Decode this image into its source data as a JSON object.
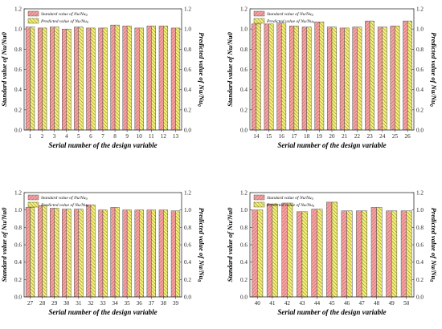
{
  "legend": {
    "standard_label": "Standard value of Nu/Nu",
    "standard_sub": "0",
    "predicted_label": "Predicted value of Nu/Nu",
    "predicted_sub": "0"
  },
  "colors": {
    "standard_fill": "#f2a3a3",
    "standard_hatch": "#c94f4f",
    "predicted_fill": "#f5f07a",
    "predicted_hatch": "#6f6f1a",
    "axis": "#333333"
  },
  "chart_data": [
    {
      "type": "bar",
      "position": "top-left",
      "title": "",
      "xlabel": "Serial number of the design variable",
      "ylabel": "Standard value of Nu/Nu0",
      "ylabel_right": "Predicted value of Nu/Nu",
      "ylabel_right_sub": "0",
      "ylim": [
        0.0,
        1.2
      ],
      "yticks": [
        "0.0",
        "0.2",
        "0.4",
        "0.6",
        "0.8",
        "1.0",
        "1.2"
      ],
      "categories": [
        "1",
        "2",
        "3",
        "4",
        "5",
        "6",
        "7",
        "8",
        "9",
        "10",
        "11",
        "12",
        "13"
      ],
      "series": [
        {
          "name": "Standard value of Nu/Nu0",
          "values": [
            1.02,
            1.01,
            1.02,
            1.0,
            1.02,
            1.01,
            1.01,
            1.04,
            1.03,
            1.01,
            1.03,
            1.03,
            1.01
          ]
        },
        {
          "name": "Predicted value of Nu/Nu0",
          "values": [
            1.02,
            1.01,
            1.02,
            1.0,
            1.02,
            1.01,
            1.01,
            1.04,
            1.03,
            1.01,
            1.03,
            1.03,
            1.01
          ]
        }
      ],
      "legend_position": "top-left",
      "grid": false
    },
    {
      "type": "bar",
      "position": "top-right",
      "title": "",
      "xlabel": "Serial number of the design variable",
      "ylabel": "Standard value of Nu/Nu0",
      "ylabel_right": "Predicted value of Nu/Nu",
      "ylabel_right_sub": "0",
      "ylim": [
        0.0,
        1.2
      ],
      "yticks": [
        "0.0",
        "0.2",
        "0.4",
        "0.6",
        "0.8",
        "1.0",
        "1.2"
      ],
      "categories": [
        "14",
        "15",
        "16",
        "17",
        "18",
        "19",
        "20",
        "21",
        "22",
        "23",
        "24",
        "25",
        "26"
      ],
      "series": [
        {
          "name": "Standard value of Nu/Nu0",
          "values": [
            1.05,
            1.05,
            1.06,
            1.03,
            1.02,
            1.07,
            1.02,
            1.01,
            1.02,
            1.08,
            1.02,
            1.03,
            1.08
          ]
        },
        {
          "name": "Predicted value of Nu/Nu0",
          "values": [
            1.05,
            1.05,
            1.06,
            1.03,
            1.02,
            1.07,
            1.02,
            1.01,
            1.02,
            1.08,
            1.02,
            1.03,
            1.08
          ]
        }
      ],
      "legend_position": "top-left",
      "grid": false
    },
    {
      "type": "bar",
      "position": "bottom-left",
      "title": "",
      "xlabel": "Serial number of the design variable",
      "ylabel": "Standard value of Nu/Nu0",
      "ylabel_right": "Predicted value of Nu/Nu",
      "ylabel_right_sub": "0",
      "ylim": [
        0.0,
        1.2
      ],
      "yticks": [
        "0.0",
        "0.2",
        "0.4",
        "0.6",
        "0.8",
        "1.0",
        "1.2"
      ],
      "categories": [
        "27",
        "28",
        "29",
        "30",
        "31",
        "32",
        "33",
        "34",
        "35",
        "36",
        "37",
        "38",
        "39"
      ],
      "series": [
        {
          "name": "Standard value of Nu/Nu0",
          "values": [
            1.03,
            1.05,
            1.02,
            1.01,
            1.01,
            1.06,
            1.0,
            1.03,
            1.0,
            1.0,
            1.0,
            1.0,
            0.99
          ]
        },
        {
          "name": "Predicted value of Nu/Nu0",
          "values": [
            1.03,
            1.05,
            1.02,
            1.01,
            1.01,
            1.06,
            1.0,
            1.03,
            1.0,
            1.0,
            1.0,
            1.0,
            0.99
          ]
        }
      ],
      "legend_position": "top-left",
      "grid": false
    },
    {
      "type": "bar",
      "position": "bottom-right",
      "title": "",
      "xlabel": "Serial number of the design variable",
      "ylabel": "Standard value of Nu/Nu0",
      "ylabel_right": "Predicted value of Nu/Nu",
      "ylabel_right_sub": "0",
      "ylim": [
        0.0,
        1.2
      ],
      "yticks": [
        "0.0",
        "0.2",
        "0.4",
        "0.6",
        "0.8",
        "1.0",
        "1.2"
      ],
      "categories": [
        "40",
        "41",
        "42",
        "43",
        "44",
        "45",
        "46",
        "47",
        "48",
        "49",
        "50"
      ],
      "series": [
        {
          "name": "Standard value of Nu/Nu0",
          "values": [
            1.0,
            1.07,
            1.08,
            0.98,
            1.01,
            1.09,
            0.99,
            0.99,
            1.03,
            0.99,
            0.99
          ]
        },
        {
          "name": "Predicted value of Nu/Nu0",
          "values": [
            1.0,
            1.07,
            1.08,
            0.98,
            1.01,
            1.09,
            0.99,
            0.99,
            1.03,
            0.99,
            0.99
          ]
        }
      ],
      "legend_position": "top-left",
      "grid": false
    }
  ]
}
